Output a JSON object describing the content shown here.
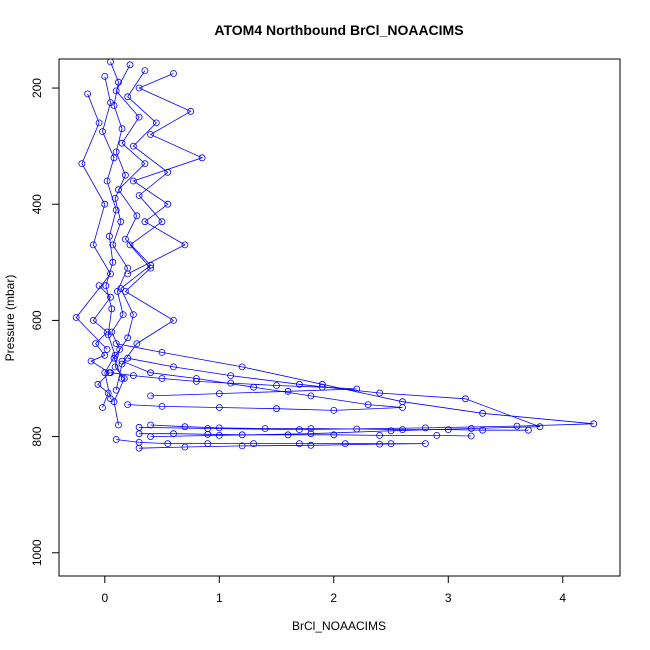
{
  "chart_data": {
    "type": "scatter",
    "title": "ATOM4 Northbound BrCl_NOAACIMS",
    "xlabel": "BrCl_NOAACIMS",
    "ylabel": "Pressure (mbar)",
    "xlim": [
      -0.4,
      4.5
    ],
    "ylim": [
      1040,
      150
    ],
    "y_reversed": true,
    "grid": false,
    "legend": "none",
    "x_ticks": [
      0,
      1,
      2,
      3,
      4
    ],
    "x_tick_labels": [
      "0",
      "1",
      "2",
      "3",
      "4"
    ],
    "y_ticks": [
      200,
      400,
      600,
      800,
      1000
    ],
    "y_tick_labels": [
      "200",
      "400",
      "600",
      "800",
      "1000"
    ],
    "series_color": "#0000ff",
    "marker": "open-circle",
    "series": [
      {
        "x": [
          0.05,
          0.12,
          0.08,
          0.15,
          0.1,
          0.18,
          0.09,
          0.14,
          0.07,
          0.2,
          0.11,
          0.16,
          0.06,
          0.13,
          0.09,
          0.17,
          0.08,
          0.12
        ],
        "y": [
          155,
          190,
          230,
          270,
          310,
          350,
          390,
          430,
          470,
          510,
          550,
          590,
          620,
          650,
          680,
          700,
          740,
          780
        ]
      },
      {
        "x": [
          0.22,
          0.1,
          0.3,
          0.15,
          0.35,
          0.12,
          0.28,
          0.18,
          0.4,
          0.14,
          0.25,
          0.2,
          0.08,
          0.15
        ],
        "y": [
          160,
          205,
          250,
          295,
          330,
          375,
          420,
          460,
          505,
          545,
          590,
          630,
          665,
          700
        ]
      },
      {
        "x": [
          0.35,
          0.2,
          0.45,
          0.25,
          0.55,
          0.3,
          0.5,
          0.22,
          0.4,
          0.18,
          0.6,
          0.28,
          0.15,
          0.1
        ],
        "y": [
          170,
          215,
          260,
          300,
          345,
          385,
          430,
          470,
          510,
          550,
          600,
          640,
          675,
          720
        ]
      },
      {
        "x": [
          0.0,
          0.05,
          -0.02,
          0.08,
          0.02,
          0.1,
          0.04,
          0.07,
          0.01,
          0.06,
          0.03,
          0.09,
          0.0,
          0.05
        ],
        "y": [
          180,
          225,
          275,
          320,
          360,
          410,
          455,
          500,
          540,
          580,
          625,
          660,
          690,
          735
        ]
      },
      {
        "x": [
          -0.05,
          0.05,
          -0.1,
          0.02,
          -0.08,
          0.0,
          -0.12,
          0.04,
          -0.06,
          0.03,
          -0.02
        ],
        "y": [
          540,
          560,
          600,
          620,
          640,
          660,
          670,
          690,
          710,
          725,
          750
        ]
      },
      {
        "x": [
          0.1,
          0.5,
          1.2,
          1.9,
          2.6,
          3.3,
          4.27,
          3.6,
          2.8,
          1.7,
          0.9,
          0.3
        ],
        "y": [
          640,
          655,
          680,
          710,
          740,
          760,
          778,
          782,
          785,
          788,
          786,
          784
        ]
      },
      {
        "x": [
          0.2,
          0.6,
          1.1,
          1.7,
          2.4,
          3.15,
          3.8,
          3.2,
          2.5,
          1.8,
          1.0,
          0.4
        ],
        "y": [
          665,
          680,
          695,
          710,
          725,
          735,
          783,
          786,
          790,
          795,
          798,
          800
        ]
      },
      {
        "x": [
          0.15,
          0.4,
          0.8,
          1.3,
          1.8,
          2.3,
          2.6,
          2.0,
          1.5,
          1.0,
          0.5,
          0.2
        ],
        "y": [
          670,
          690,
          700,
          715,
          730,
          745,
          750,
          755,
          752,
          750,
          748,
          745
        ]
      },
      {
        "x": [
          0.1,
          0.3,
          0.55,
          0.9,
          1.3,
          1.7,
          2.1,
          2.5,
          2.8,
          2.4,
          1.8,
          1.2,
          0.7,
          0.3
        ],
        "y": [
          805,
          810,
          812,
          812,
          812,
          812,
          812,
          812,
          812,
          813,
          815,
          816,
          818,
          820
        ]
      },
      {
        "x": [
          0.4,
          0.7,
          1.0,
          1.4,
          1.8,
          2.2,
          2.6,
          3.0,
          3.3,
          3.7
        ],
        "y": [
          780,
          783,
          785,
          786,
          786,
          787,
          788,
          788,
          789,
          789
        ]
      },
      {
        "x": [
          0.3,
          0.6,
          0.9,
          1.2,
          1.6,
          2.0,
          2.4,
          2.9,
          3.2
        ],
        "y": [
          795,
          795,
          796,
          797,
          797,
          797,
          798,
          798,
          799
        ]
      },
      {
        "x": [
          0.05,
          0.25,
          0.5,
          0.8,
          1.1,
          1.5,
          1.9,
          2.2,
          1.6,
          1.0,
          0.4
        ],
        "y": [
          690,
          695,
          700,
          705,
          708,
          712,
          715,
          718,
          722,
          726,
          730
        ]
      },
      {
        "x": [
          0.6,
          0.3,
          0.75,
          0.4,
          0.85,
          0.25,
          0.55,
          0.35,
          0.7,
          0.2
        ],
        "y": [
          175,
          200,
          240,
          280,
          320,
          360,
          400,
          430,
          470,
          520
        ]
      },
      {
        "x": [
          -0.15,
          -0.05,
          -0.2,
          0.0,
          -0.1,
          0.05,
          -0.25,
          0.02
        ],
        "y": [
          210,
          260,
          330,
          400,
          470,
          520,
          595,
          650
        ]
      }
    ]
  }
}
